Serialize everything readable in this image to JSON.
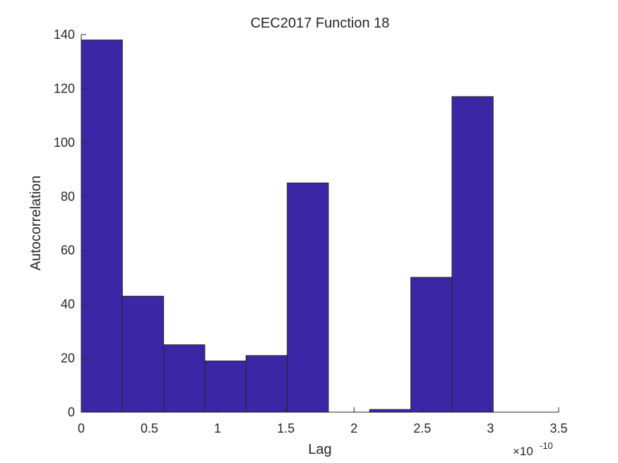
{
  "chart_data": {
    "type": "bar",
    "title": "CEC2017 Function 18",
    "xlabel": "Lag",
    "ylabel": "Autocorrelation",
    "x_exponent_base": "×10",
    "x_exponent_power": "-10",
    "xlim": [
      0,
      3.5
    ],
    "ylim": [
      0,
      140
    ],
    "xticks": [
      0,
      0.5,
      1,
      1.5,
      2,
      2.5,
      3,
      3.5
    ],
    "xtick_labels": [
      "0",
      "0.5",
      "1",
      "1.5",
      "2",
      "2.5",
      "3",
      "3.5"
    ],
    "yticks": [
      0,
      20,
      40,
      60,
      80,
      100,
      120,
      140
    ],
    "ytick_labels": [
      "0",
      "20",
      "40",
      "60",
      "80",
      "100",
      "120",
      "140"
    ],
    "bin_edges": [
      0,
      0.302,
      0.604,
      0.906,
      1.208,
      1.51,
      1.812,
      2.114,
      2.416,
      2.718,
      3.02
    ],
    "values": [
      138,
      43,
      25,
      19,
      21,
      85,
      0,
      1,
      50,
      117
    ],
    "bar_color": "#3b27a6",
    "edge_color": "#262626",
    "grid": false
  }
}
